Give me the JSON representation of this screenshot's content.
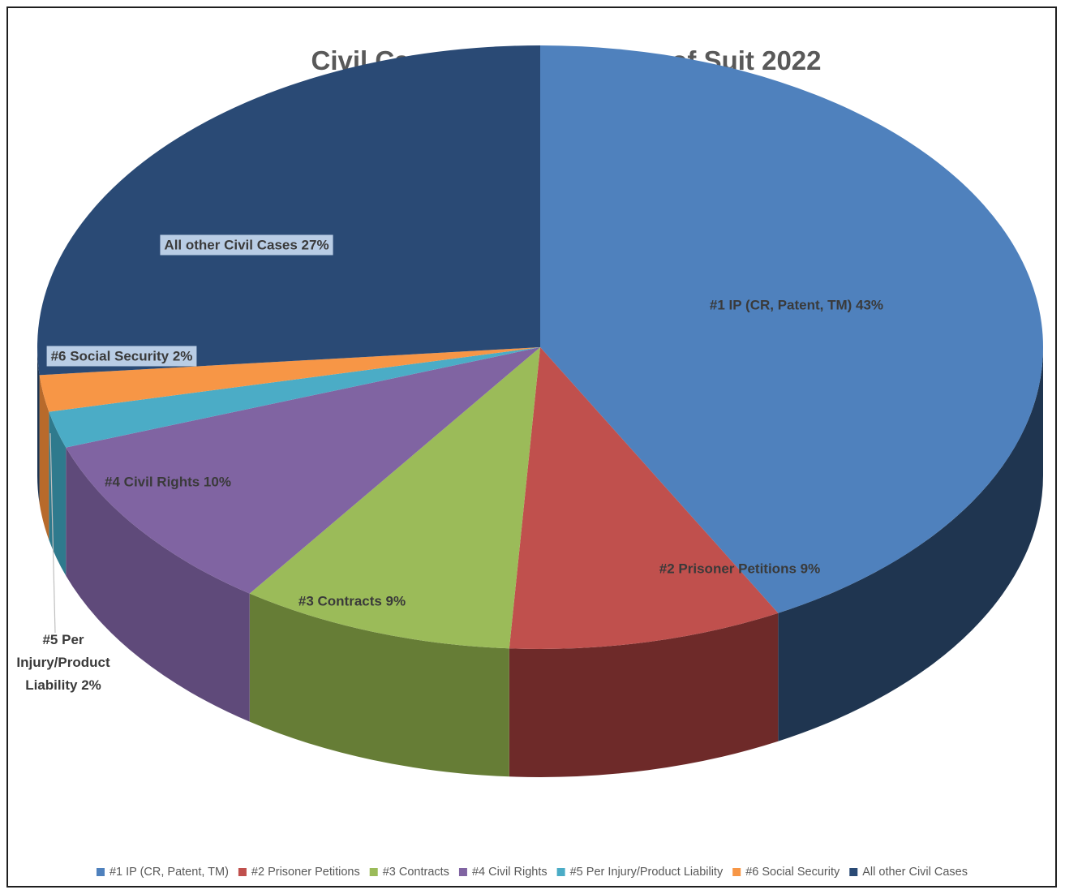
{
  "chart_data": {
    "type": "pie",
    "title": "Civil Case Filings by Nature of Suit 2022",
    "slices": [
      {
        "legend": "#1 IP (CR, Patent, TM)",
        "label": "#1 IP (CR, Patent, TM) 43%",
        "value": 43,
        "color": "#4F81BD",
        "side_color": "#1F3550"
      },
      {
        "legend": "#2 Prisoner Petitions",
        "label": "#2 Prisoner Petitions 9%",
        "value": 9,
        "color": "#C0504D",
        "side_color": "#6E2A29"
      },
      {
        "legend": "#3 Contracts",
        "label": "#3 Contracts 9%",
        "value": 9,
        "color": "#9BBB59",
        "side_color": "#667D36"
      },
      {
        "legend": "#4 Civil Rights",
        "label": "#4 Civil Rights 10%",
        "value": 10,
        "color": "#8064A2",
        "side_color": "#5F4A7A"
      },
      {
        "legend": "#5 Per Injury/Product Liability",
        "label": "#5 Per Injury/Product Liability 2%",
        "label_lines": [
          "#5 Per",
          "Injury/Product",
          "Liability 2%"
        ],
        "value": 2,
        "color": "#4BACC6",
        "side_color": "#2F7A8D"
      },
      {
        "legend": "#6 Social Security",
        "label": "#6 Social Security 2%",
        "value": 2,
        "color": "#F79646",
        "side_color": "#B86A2B"
      },
      {
        "legend": "All other Civil Cases",
        "label": "All other Civil Cases 27%",
        "value": 27,
        "color": "#2A4A75",
        "side_color": "#1C3350"
      }
    ],
    "legend_position": "bottom",
    "style": "3d"
  }
}
